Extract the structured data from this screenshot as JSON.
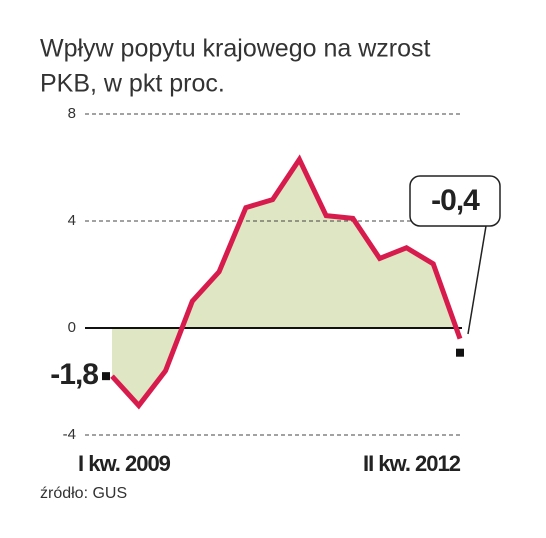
{
  "chart_data": {
    "type": "line",
    "title": "Wpływ popytu krajowego na wzrost PKB, w pkt proc.",
    "categories": [
      "I kw. 2009",
      null,
      null,
      null,
      null,
      null,
      null,
      null,
      null,
      null,
      null,
      null,
      null,
      "II kw. 2012"
    ],
    "values": [
      -1.8,
      -2.9,
      -1.6,
      1.0,
      2.1,
      4.5,
      4.8,
      6.3,
      4.2,
      4.1,
      2.6,
      3.0,
      2.4,
      -0.4
    ],
    "value_labels": [
      "-1,8",
      null,
      null,
      null,
      null,
      null,
      null,
      null,
      null,
      null,
      null,
      null,
      null,
      "-0,4"
    ],
    "color": "#d81b4d",
    "area_color": "#dfe6c3",
    "ylim": [
      -4,
      8
    ],
    "yticks": [
      8,
      4,
      0,
      -4
    ],
    "grid": true,
    "source": "źródło: GUS"
  }
}
